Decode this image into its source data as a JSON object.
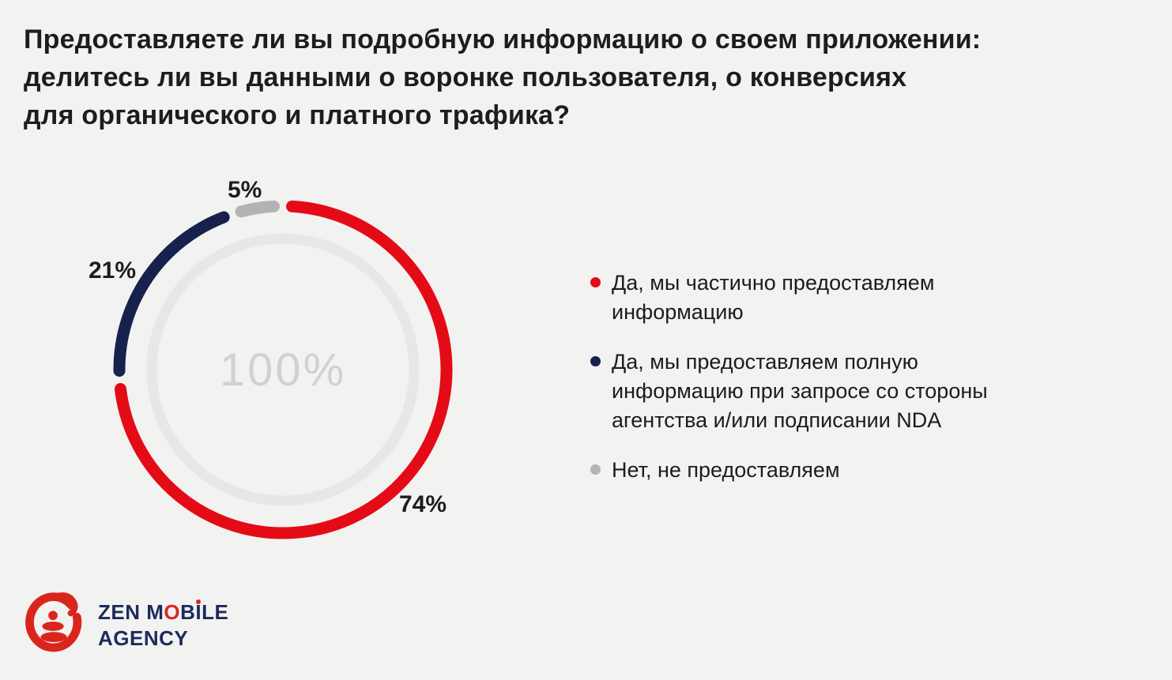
{
  "page": {
    "background_color": "#f2f2f1"
  },
  "title": "Предоставляете ли вы подробную информацию о своем приложении:\nделитесь ли вы данными о воронке пользователя, о конверсиях\nдля органического и платного трафика?",
  "chart_data": {
    "type": "pie",
    "donut": true,
    "start_angle_deg": 0,
    "direction": "clockwise",
    "center_label": "100%",
    "inner_ring_color": "#e7e7e6",
    "center_label_color": "#d1d1d0",
    "legend_position": "right",
    "segments": [
      {
        "label": "Да, мы частично предоставляем\nинформацию",
        "value": 74,
        "display": "74%",
        "color": "#e50b16"
      },
      {
        "label": "Да, мы предоставляем полную\nинформацию при запросе со стороны\nагентства и/или подписании NDA",
        "value": 21,
        "display": "21%",
        "color": "#16214d"
      },
      {
        "label": "Нет, не предоставляем",
        "value": 5,
        "display": "5%",
        "color": "#b3b3b3"
      }
    ]
  },
  "logo": {
    "t1": "ZEN M",
    "o": "O",
    "t2": "B",
    "i": "I",
    "t3": "LE",
    "line2": "AGENCY",
    "brand_red": "#da251d",
    "brand_navy": "#1c2b5c"
  }
}
